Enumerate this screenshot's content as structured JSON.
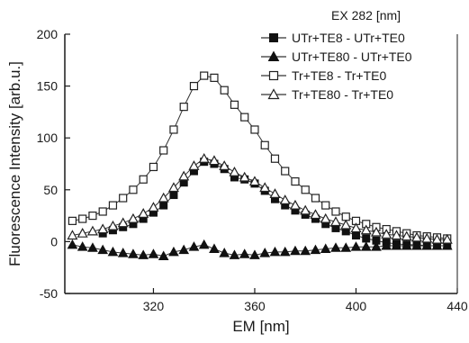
{
  "chart_data": {
    "type": "scatter",
    "xlabel": "EM [nm]",
    "ylabel": "Fluorescence Intensity [arb.u.]",
    "annotation": "EX 282 [nm]",
    "xlim": [
      285,
      440
    ],
    "ylim": [
      -50,
      200
    ],
    "xticks": [
      320,
      360,
      400,
      440
    ],
    "yticks": [
      -50,
      0,
      50,
      100,
      150,
      200
    ],
    "grid": false,
    "legend_position": "top-right",
    "series": [
      {
        "name": "UTr+TE8 - UTr+TE0",
        "marker": "filled-square",
        "points": [
          [
            300,
            8
          ],
          [
            304,
            11
          ],
          [
            308,
            14
          ],
          [
            312,
            17
          ],
          [
            316,
            22
          ],
          [
            320,
            28
          ],
          [
            324,
            35
          ],
          [
            328,
            45
          ],
          [
            332,
            57
          ],
          [
            336,
            68
          ],
          [
            340,
            77
          ],
          [
            344,
            75
          ],
          [
            348,
            70
          ],
          [
            352,
            62
          ],
          [
            356,
            60
          ],
          [
            360,
            56
          ],
          [
            364,
            49
          ],
          [
            368,
            41
          ],
          [
            372,
            35
          ],
          [
            376,
            30
          ],
          [
            380,
            26
          ],
          [
            384,
            22
          ],
          [
            388,
            17
          ],
          [
            392,
            13
          ],
          [
            396,
            10
          ],
          [
            400,
            6
          ],
          [
            404,
            3
          ],
          [
            408,
            1
          ],
          [
            412,
            -1
          ],
          [
            416,
            -2
          ],
          [
            420,
            -3
          ],
          [
            424,
            -3
          ],
          [
            428,
            -4
          ],
          [
            432,
            -4
          ],
          [
            436,
            -4
          ]
        ]
      },
      {
        "name": "UTr+TE80 - UTr+TE0",
        "marker": "filled-triangle",
        "points": [
          [
            288,
            -3
          ],
          [
            292,
            -5
          ],
          [
            296,
            -6
          ],
          [
            300,
            -8
          ],
          [
            304,
            -10
          ],
          [
            308,
            -11
          ],
          [
            312,
            -12
          ],
          [
            316,
            -13
          ],
          [
            320,
            -12
          ],
          [
            324,
            -14
          ],
          [
            328,
            -10
          ],
          [
            332,
            -8
          ],
          [
            336,
            -5
          ],
          [
            340,
            -3
          ],
          [
            344,
            -7
          ],
          [
            348,
            -11
          ],
          [
            352,
            -13
          ],
          [
            356,
            -12
          ],
          [
            360,
            -13
          ],
          [
            364,
            -11
          ],
          [
            368,
            -10
          ],
          [
            372,
            -10
          ],
          [
            376,
            -9
          ],
          [
            380,
            -9
          ],
          [
            384,
            -8
          ],
          [
            388,
            -7
          ],
          [
            392,
            -6
          ],
          [
            396,
            -6
          ],
          [
            400,
            -5
          ],
          [
            404,
            -5
          ],
          [
            408,
            -5
          ],
          [
            412,
            -4
          ],
          [
            416,
            -4
          ],
          [
            420,
            -4
          ],
          [
            424,
            -4
          ],
          [
            428,
            -4
          ],
          [
            432,
            -4
          ],
          [
            436,
            -4
          ]
        ]
      },
      {
        "name": "Tr+TE8 - Tr+TE0",
        "marker": "open-square",
        "points": [
          [
            288,
            20
          ],
          [
            292,
            22
          ],
          [
            296,
            25
          ],
          [
            300,
            29
          ],
          [
            304,
            35
          ],
          [
            308,
            42
          ],
          [
            312,
            50
          ],
          [
            316,
            60
          ],
          [
            320,
            72
          ],
          [
            324,
            88
          ],
          [
            328,
            108
          ],
          [
            332,
            130
          ],
          [
            336,
            150
          ],
          [
            340,
            160
          ],
          [
            344,
            158
          ],
          [
            348,
            146
          ],
          [
            352,
            132
          ],
          [
            356,
            120
          ],
          [
            360,
            108
          ],
          [
            364,
            93
          ],
          [
            368,
            80
          ],
          [
            372,
            68
          ],
          [
            376,
            58
          ],
          [
            380,
            50
          ],
          [
            384,
            42
          ],
          [
            388,
            35
          ],
          [
            392,
            29
          ],
          [
            396,
            24
          ],
          [
            400,
            20
          ],
          [
            404,
            17
          ],
          [
            408,
            14
          ],
          [
            412,
            12
          ],
          [
            416,
            10
          ],
          [
            420,
            8
          ],
          [
            424,
            6
          ],
          [
            428,
            5
          ],
          [
            432,
            4
          ],
          [
            436,
            3
          ]
        ]
      },
      {
        "name": "Tr+TE80 - Tr+TE0",
        "marker": "open-triangle",
        "points": [
          [
            288,
            6
          ],
          [
            292,
            8
          ],
          [
            296,
            10
          ],
          [
            300,
            12
          ],
          [
            304,
            15
          ],
          [
            308,
            18
          ],
          [
            312,
            22
          ],
          [
            316,
            27
          ],
          [
            320,
            33
          ],
          [
            324,
            42
          ],
          [
            328,
            52
          ],
          [
            332,
            63
          ],
          [
            336,
            73
          ],
          [
            340,
            80
          ],
          [
            344,
            78
          ],
          [
            348,
            73
          ],
          [
            352,
            67
          ],
          [
            356,
            62
          ],
          [
            360,
            58
          ],
          [
            364,
            52
          ],
          [
            368,
            46
          ],
          [
            372,
            40
          ],
          [
            376,
            35
          ],
          [
            380,
            30
          ],
          [
            384,
            26
          ],
          [
            388,
            22
          ],
          [
            392,
            19
          ],
          [
            396,
            16
          ],
          [
            400,
            13
          ],
          [
            404,
            11
          ],
          [
            408,
            9
          ],
          [
            412,
            7
          ],
          [
            416,
            6
          ],
          [
            420,
            5
          ],
          [
            424,
            4
          ],
          [
            428,
            3
          ],
          [
            432,
            2
          ],
          [
            436,
            2
          ]
        ]
      }
    ]
  }
}
